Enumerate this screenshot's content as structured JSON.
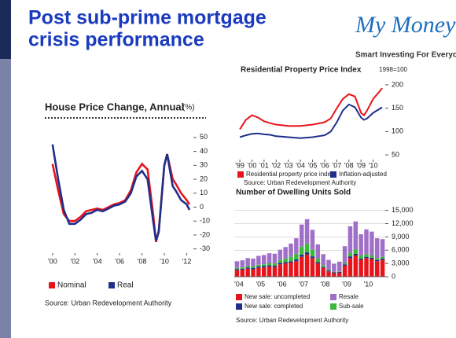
{
  "slide": {
    "title_lines": [
      "Post sub-prime mortgage",
      "crisis performance"
    ],
    "logo": "My Money",
    "tagline": "Smart Investing For Everyone."
  },
  "chart_data": [
    {
      "type": "line",
      "title": "House Price Change, Annual",
      "unit": "(%)",
      "source": "Source: Urban Redevelopment Authority",
      "x": [
        2000,
        2000.5,
        2001,
        2001.5,
        2002,
        2002.5,
        2003,
        2003.5,
        2004,
        2004.5,
        2005,
        2005.5,
        2006,
        2006.5,
        2007,
        2007.5,
        2008,
        2008.5,
        2009,
        2009.25,
        2009.5,
        2010,
        2010.25,
        2010.75,
        2011,
        2011.5,
        2012,
        2012.25
      ],
      "series": [
        {
          "name": "Nominal",
          "color": "#e8141b",
          "values": [
            31,
            12,
            -5,
            -10,
            -10,
            -7,
            -3,
            -2,
            -1,
            -2,
            0,
            2,
            3,
            5,
            12,
            25,
            31,
            27,
            -5,
            -25,
            -17,
            30,
            38,
            20,
            17,
            10,
            5,
            2
          ]
        },
        {
          "name": "Real",
          "color": "#1f2f8a",
          "values": [
            45,
            20,
            -2,
            -12,
            -12,
            -9,
            -5,
            -4,
            -2,
            -3,
            -1,
            1,
            2,
            4,
            10,
            22,
            26,
            20,
            -10,
            -24,
            -18,
            30,
            38,
            15,
            12,
            5,
            2,
            -2
          ]
        }
      ],
      "xlim": [
        1999.8,
        2012.6
      ],
      "xticks": [
        {
          "value": 2000,
          "label": "'00"
        },
        {
          "value": 2002,
          "label": "'02"
        },
        {
          "value": 2004,
          "label": "'04"
        },
        {
          "value": 2006,
          "label": "'06"
        },
        {
          "value": 2008,
          "label": "'08"
        },
        {
          "value": 2010,
          "label": "'10"
        },
        {
          "value": 2012,
          "label": "'12"
        }
      ],
      "ylim": [
        -33,
        55
      ],
      "yticks": [
        50,
        40,
        30,
        20,
        10,
        0,
        -10,
        -20,
        -30
      ],
      "grid": false
    },
    {
      "type": "line",
      "title": "Residential Property Price Index",
      "unit": "1998=100",
      "source": "Source: Urban Redevelopment Authority",
      "x": [
        1999,
        1999.5,
        2000,
        2000.5,
        2001,
        2001.5,
        2002,
        2003,
        2004,
        2005,
        2006,
        2006.5,
        2007,
        2007.5,
        2008,
        2008.5,
        2009,
        2009.25,
        2009.5,
        2010,
        2010.5,
        2010.75
      ],
      "series": [
        {
          "name": "Residential property price index",
          "color": "#e8141b",
          "values": [
            105,
            125,
            135,
            130,
            122,
            118,
            115,
            112,
            112,
            115,
            120,
            128,
            150,
            170,
            180,
            175,
            140,
            135,
            145,
            170,
            185,
            193
          ]
        },
        {
          "name": "Inflation-adjusted",
          "color": "#1f2f8a",
          "values": [
            88,
            92,
            95,
            96,
            94,
            93,
            90,
            88,
            86,
            88,
            92,
            100,
            120,
            145,
            158,
            152,
            130,
            125,
            128,
            140,
            148,
            152
          ]
        }
      ],
      "xlim": [
        1998.8,
        2011
      ],
      "xticks": [
        {
          "value": 1999,
          "label": "'99"
        },
        {
          "value": 2000,
          "label": "'00"
        },
        {
          "value": 2001,
          "label": "'01"
        },
        {
          "value": 2002,
          "label": "'02"
        },
        {
          "value": 2003,
          "label": "'03"
        },
        {
          "value": 2004,
          "label": "'04"
        },
        {
          "value": 2005,
          "label": "'05"
        },
        {
          "value": 2006,
          "label": "'06"
        },
        {
          "value": 2007,
          "label": "'07"
        },
        {
          "value": 2008,
          "label": "'08"
        },
        {
          "value": 2009,
          "label": "'09"
        },
        {
          "value": 2010,
          "label": "'10"
        }
      ],
      "ylim": [
        40,
        205
      ],
      "yticks": [
        50,
        100,
        150,
        200
      ],
      "grid": false
    },
    {
      "type": "stacked-bar",
      "title": "Number of Dwelling Units Sold",
      "source": "Source: Urban Redevelopment Authority",
      "categories": [
        "'04",
        null,
        null,
        null,
        "'05",
        null,
        null,
        null,
        "'06",
        null,
        null,
        null,
        "'07",
        null,
        null,
        null,
        "'08",
        null,
        null,
        null,
        "'09",
        null,
        null,
        null,
        "'10",
        null,
        null,
        null
      ],
      "series": [
        {
          "name": "New sale: uncompleted",
          "color": "#e8141b",
          "values": [
            1500,
            1600,
            1800,
            1700,
            2000,
            2100,
            2300,
            2200,
            2800,
            3000,
            3200,
            3500,
            4500,
            5000,
            4200,
            3000,
            2000,
            1200,
            800,
            900,
            2500,
            4200,
            4800,
            3800,
            4200,
            4000,
            3500,
            3800
          ]
        },
        {
          "name": "New sale: completed",
          "color": "#1f2f8a",
          "values": [
            200,
            200,
            300,
            300,
            300,
            300,
            300,
            300,
            300,
            300,
            300,
            400,
            500,
            500,
            400,
            300,
            200,
            200,
            200,
            200,
            300,
            400,
            400,
            300,
            300,
            300,
            300,
            300
          ]
        },
        {
          "name": "Sub-sale",
          "color": "#3cb83c",
          "values": [
            300,
            300,
            300,
            400,
            400,
            400,
            500,
            500,
            700,
            800,
            1000,
            1300,
            1800,
            2000,
            1500,
            800,
            400,
            200,
            100,
            100,
            300,
            800,
            1000,
            700,
            600,
            500,
            400,
            400
          ]
        },
        {
          "name": "Resale",
          "color": "#a070c8",
          "values": [
            1500,
            1600,
            1800,
            1700,
            2000,
            2100,
            2200,
            2200,
            2300,
            2600,
            3000,
            3500,
            5000,
            5500,
            4500,
            3200,
            2500,
            2200,
            1800,
            2200,
            3800,
            6000,
            6300,
            4800,
            5600,
            5400,
            4500,
            4000
          ]
        }
      ],
      "ylim": [
        0,
        16000
      ],
      "yticks": [
        0,
        {
          "value": 3000,
          "label": "3,000"
        },
        {
          "value": 6000,
          "label": "6,000"
        },
        {
          "value": 9000,
          "label": "9,000"
        },
        {
          "value": 12000,
          "label": "12,000"
        },
        {
          "value": 15000,
          "label": "15,000"
        }
      ],
      "grid": true
    }
  ]
}
